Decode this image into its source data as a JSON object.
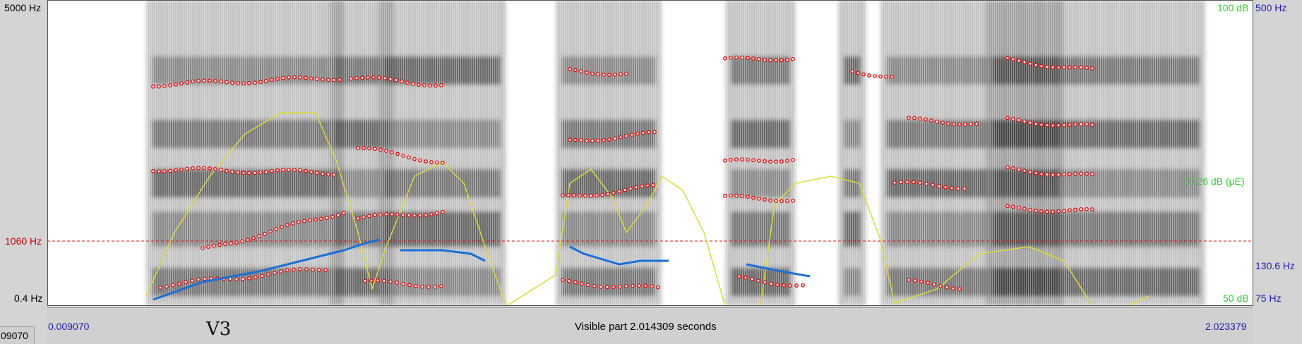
{
  "spectrogram": {
    "freq_top": "5000 Hz",
    "freq_bottom": "0.4 Hz",
    "cursor_freq": "1060 Hz"
  },
  "right_axis": {
    "intensity_top": "100 dB",
    "intensity_mid": "70.26 dB (μE)",
    "intensity_bottom": "50 dB",
    "pitch_top": "500 Hz",
    "pitch_mid": "130.6 Hz",
    "pitch_bottom": "75 Hz"
  },
  "time_bar": {
    "start_time": "0.009070",
    "visible_part": "Visible part 2.014309 seconds",
    "end_time": "2.023379"
  },
  "tier": {
    "label": "V3",
    "left_value": "09070"
  },
  "colors": {
    "spectrogram_ink": "#222222",
    "formant": "#dd1111",
    "intensity": "#dddd33",
    "pitch": "#1a6fd8",
    "cursor": "#dd1111"
  }
}
